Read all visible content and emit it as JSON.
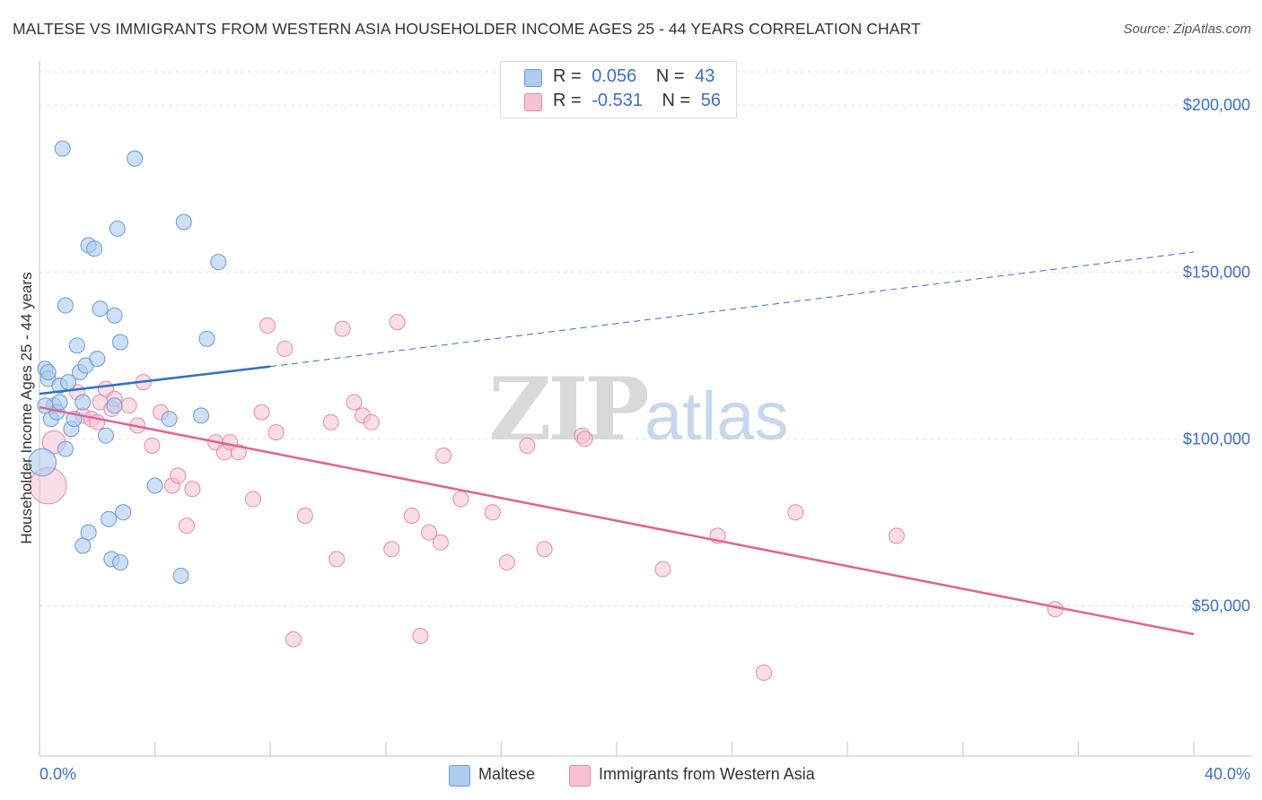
{
  "title": "MALTESE VS IMMIGRANTS FROM WESTERN ASIA HOUSEHOLDER INCOME AGES 25 - 44 YEARS CORRELATION CHART",
  "source": "Source: ZipAtlas.com",
  "watermark": {
    "zip": "ZIP",
    "atlas": "atlas"
  },
  "legend_top": [
    {
      "r_label": "R =",
      "r_value": "0.056",
      "n_label": "N =",
      "n_value": "43"
    },
    {
      "r_label": "R =",
      "r_value": "-0.531",
      "n_label": "N =",
      "n_value": "56"
    }
  ],
  "legend_bottom": [
    "Maltese",
    "Immigrants from Western Asia"
  ],
  "colors": {
    "maltese_fill": "#aecbf0",
    "maltese_stroke": "#6a9ad8",
    "maltese_line": "#2f6fce",
    "wa_fill": "#f7c1d2",
    "wa_stroke": "#e68aa8",
    "wa_line": "#e4628f",
    "tick_text": "#3b6fcc",
    "grid": "#e3e3e3"
  },
  "chart_data": {
    "type": "scatter",
    "title": "MALTESE VS IMMIGRANTS FROM WESTERN ASIA HOUSEHOLDER INCOME AGES 25 - 44 YEARS CORRELATION CHART",
    "xlabel": "",
    "ylabel": "Householder Income Ages 25 - 44 years",
    "xlim": [
      0,
      40
    ],
    "ylim": [
      5000,
      210000
    ],
    "x_tick_labels": [
      "0.0%",
      "40.0%"
    ],
    "y_ticks": [
      50000,
      100000,
      150000,
      200000
    ],
    "y_tick_labels": [
      "$50,000",
      "$100,000",
      "$150,000",
      "$200,000"
    ],
    "grid": true,
    "legend": "top-center and bottom",
    "series": [
      {
        "name": "Maltese",
        "r": 0.056,
        "n": 43,
        "trend": {
          "x": [
            0,
            8
          ],
          "y": [
            113500,
            121700
          ],
          "extended_to": [
            40,
            156000
          ]
        },
        "points": [
          [
            0.1,
            93,
            1.8
          ],
          [
            0.2,
            121,
            1
          ],
          [
            0.3,
            118,
            1
          ],
          [
            0.3,
            120,
            1
          ],
          [
            0.4,
            106,
            1
          ],
          [
            0.5,
            110,
            1
          ],
          [
            0.6,
            108,
            1
          ],
          [
            0.7,
            111,
            1
          ],
          [
            0.7,
            116,
            1
          ],
          [
            0.8,
            187,
            1
          ],
          [
            0.9,
            140,
            1
          ],
          [
            0.9,
            97,
            1
          ],
          [
            1.0,
            117,
            1
          ],
          [
            1.1,
            103,
            1
          ],
          [
            1.2,
            106,
            1
          ],
          [
            1.3,
            128,
            1
          ],
          [
            1.4,
            120,
            1
          ],
          [
            1.5,
            111,
            1
          ],
          [
            1.5,
            68,
            1
          ],
          [
            1.6,
            122,
            1
          ],
          [
            1.7,
            72,
            1
          ],
          [
            1.7,
            158,
            1
          ],
          [
            1.9,
            157,
            1
          ],
          [
            2.0,
            124,
            1
          ],
          [
            2.1,
            139,
            1
          ],
          [
            2.3,
            101,
            1
          ],
          [
            2.4,
            76,
            1
          ],
          [
            2.5,
            64,
            1
          ],
          [
            2.6,
            137,
            1
          ],
          [
            2.6,
            110,
            1
          ],
          [
            2.7,
            163,
            1
          ],
          [
            2.8,
            63,
            1
          ],
          [
            2.8,
            129,
            1
          ],
          [
            2.9,
            78,
            1
          ],
          [
            3.3,
            184,
            1
          ],
          [
            4.0,
            86,
            1
          ],
          [
            4.5,
            106,
            1
          ],
          [
            4.9,
            59,
            1
          ],
          [
            5.0,
            165,
            1
          ],
          [
            5.6,
            107,
            1
          ],
          [
            5.8,
            130,
            1
          ],
          [
            6.2,
            153,
            1
          ],
          [
            0.2,
            110,
            1
          ]
        ]
      },
      {
        "name": "Immigrants from Western Asia",
        "r": -0.531,
        "n": 56,
        "trend": {
          "x": [
            0,
            40
          ],
          "y": [
            109500,
            41500
          ]
        },
        "points": [
          [
            0.3,
            86,
            2.4
          ],
          [
            0.5,
            99,
            1.5
          ],
          [
            1.3,
            114,
            1
          ],
          [
            1.5,
            107,
            1
          ],
          [
            1.8,
            106,
            1
          ],
          [
            2.0,
            105,
            1
          ],
          [
            2.1,
            111,
            1
          ],
          [
            2.3,
            115,
            1
          ],
          [
            2.5,
            109,
            1
          ],
          [
            2.6,
            112,
            1
          ],
          [
            3.1,
            110,
            1
          ],
          [
            3.4,
            104,
            1
          ],
          [
            3.6,
            117,
            1
          ],
          [
            3.9,
            98,
            1
          ],
          [
            4.2,
            108,
            1
          ],
          [
            4.6,
            86,
            1
          ],
          [
            4.8,
            89,
            1
          ],
          [
            5.1,
            74,
            1
          ],
          [
            5.3,
            85,
            1
          ],
          [
            6.1,
            99,
            1
          ],
          [
            6.4,
            96,
            1
          ],
          [
            6.6,
            99,
            1
          ],
          [
            6.9,
            96,
            1
          ],
          [
            7.4,
            82,
            1
          ],
          [
            7.7,
            108,
            1
          ],
          [
            7.9,
            134,
            1
          ],
          [
            8.2,
            102,
            1
          ],
          [
            8.5,
            127,
            1
          ],
          [
            8.8,
            40,
            1
          ],
          [
            9.2,
            77,
            1
          ],
          [
            10.1,
            105,
            1
          ],
          [
            10.3,
            64,
            1
          ],
          [
            10.5,
            133,
            1
          ],
          [
            10.9,
            111,
            1
          ],
          [
            11.2,
            107,
            1
          ],
          [
            11.5,
            105,
            1
          ],
          [
            12.2,
            67,
            1
          ],
          [
            12.4,
            135,
            1
          ],
          [
            12.9,
            77,
            1
          ],
          [
            13.2,
            41,
            1
          ],
          [
            13.5,
            72,
            1
          ],
          [
            13.9,
            69,
            1
          ],
          [
            14.0,
            95,
            1
          ],
          [
            14.6,
            82,
            1
          ],
          [
            15.7,
            78,
            1
          ],
          [
            16.2,
            63,
            1
          ],
          [
            16.9,
            98,
            1
          ],
          [
            17.5,
            67,
            1
          ],
          [
            18.8,
            101,
            1
          ],
          [
            18.9,
            100,
            1
          ],
          [
            21.6,
            61,
            1
          ],
          [
            23.5,
            71,
            1
          ],
          [
            25.1,
            30,
            1
          ],
          [
            26.2,
            78,
            1
          ],
          [
            29.7,
            71,
            1
          ],
          [
            35.2,
            49,
            1
          ]
        ]
      }
    ]
  }
}
